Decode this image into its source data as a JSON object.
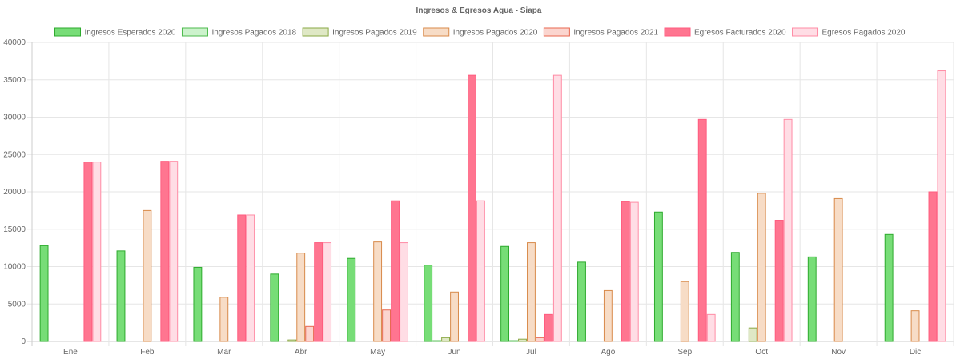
{
  "chart_data": {
    "type": "bar",
    "title": "Ingresos & Egresos Agua - Siapa",
    "xlabel": "",
    "ylabel": "",
    "ylim": [
      0,
      40000
    ],
    "yticks": [
      0,
      5000,
      10000,
      15000,
      20000,
      25000,
      30000,
      35000,
      40000
    ],
    "grid": true,
    "legend_position": "top",
    "categories": [
      "Ene",
      "Feb",
      "Mar",
      "Abr",
      "May",
      "Jun",
      "Jul",
      "Ago",
      "Sep",
      "Oct",
      "Nov",
      "Dic"
    ],
    "series": [
      {
        "name": "Ingresos Esperados 2020",
        "fill": "#77dd77",
        "stroke": "#2eaa2e",
        "values": [
          12800,
          12100,
          9900,
          9000,
          11100,
          10200,
          12700,
          10600,
          17300,
          11900,
          11300,
          14300
        ]
      },
      {
        "name": "Ingresos Pagados 2018",
        "fill": "#ccf2cc",
        "stroke": "#4cbb4c",
        "values": [
          0,
          0,
          0,
          0,
          0,
          100,
          100,
          0,
          0,
          0,
          0,
          0
        ]
      },
      {
        "name": "Ingresos Pagados 2019",
        "fill": "#dfe8c5",
        "stroke": "#8aa845",
        "values": [
          0,
          0,
          0,
          200,
          0,
          500,
          300,
          0,
          0,
          1800,
          0,
          0
        ]
      },
      {
        "name": "Ingresos Pagados 2020",
        "fill": "#f7dcc6",
        "stroke": "#d88a4a",
        "values": [
          0,
          17500,
          5900,
          11800,
          13300,
          6600,
          13200,
          6800,
          8000,
          19800,
          19100,
          4100
        ]
      },
      {
        "name": "Ingresos Pagados 2021",
        "fill": "#fbd5cf",
        "stroke": "#e8674f",
        "values": [
          0,
          0,
          0,
          2000,
          4200,
          0,
          500,
          0,
          0,
          0,
          0,
          0
        ]
      },
      {
        "name": "Egresos Facturados 2020",
        "fill": "#ff7590",
        "stroke": "#ff5c7f",
        "values": [
          24000,
          24100,
          16900,
          13200,
          18800,
          35600,
          3600,
          18700,
          29700,
          16200,
          0,
          20000
        ]
      },
      {
        "name": "Egresos Pagados 2020",
        "fill": "#ffdde5",
        "stroke": "#ff8ca5",
        "values": [
          24000,
          24100,
          16900,
          13200,
          13200,
          18800,
          35600,
          18600,
          3600,
          29700,
          0,
          36200
        ]
      }
    ]
  }
}
